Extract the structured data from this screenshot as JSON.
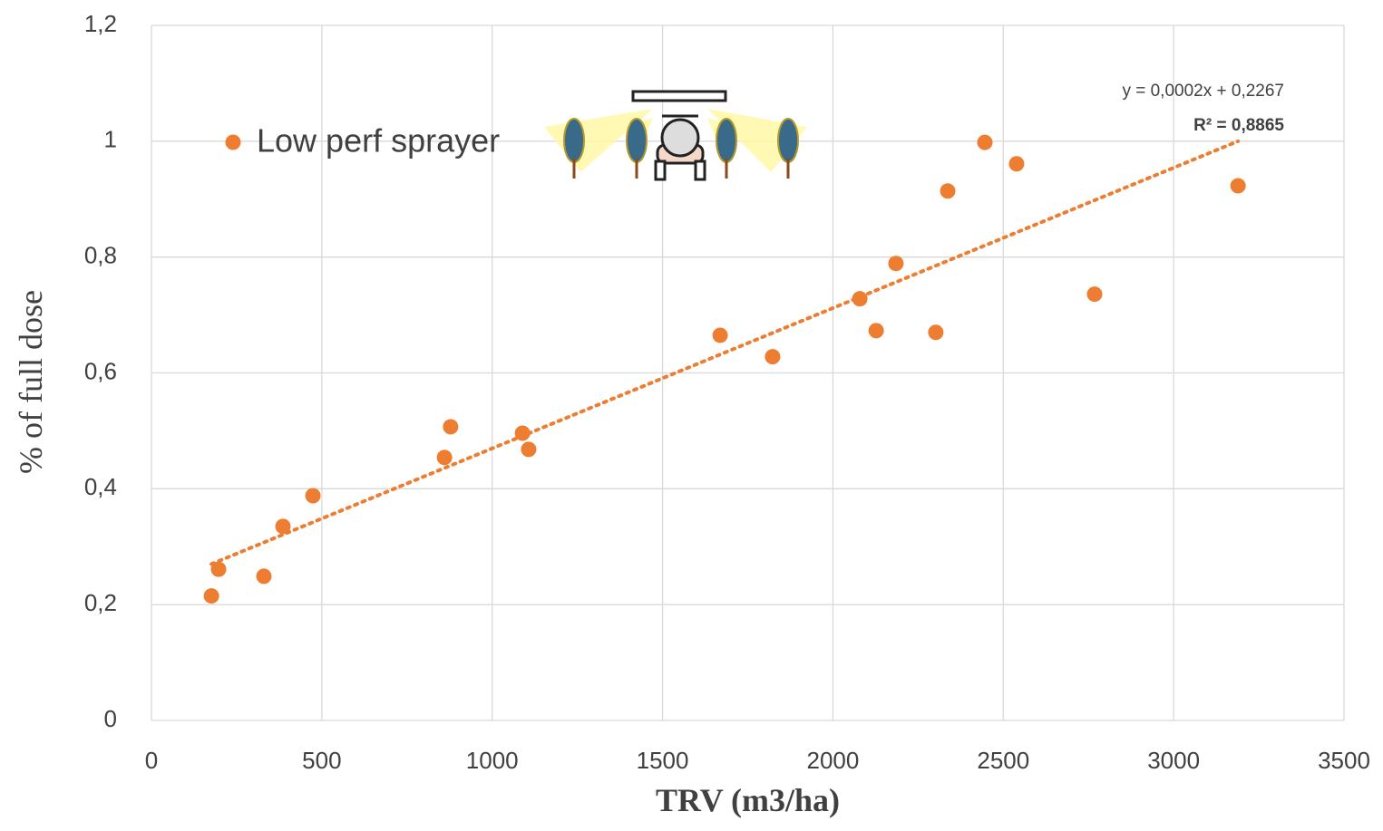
{
  "chart_data": {
    "type": "scatter",
    "x_label": "TRV (m3/ha)",
    "y_label": "% of full dose",
    "series": [
      {
        "name": "Low perf sprayer",
        "color": "#ED7D31",
        "x": [
          176,
          197,
          330,
          386,
          474,
          860,
          878,
          1089,
          1107,
          1669,
          1823,
          2079,
          2127,
          2185,
          2302,
          2337,
          2446,
          2539,
          2768,
          3189
        ],
        "values": [
          0.215,
          0.261,
          0.249,
          0.335,
          0.388,
          0.454,
          0.507,
          0.496,
          0.468,
          0.665,
          0.628,
          0.728,
          0.673,
          0.789,
          0.67,
          0.914,
          0.998,
          0.961,
          0.736,
          0.923
        ]
      }
    ],
    "trendline": {
      "equation": "y = 0,0002x + 0,2267",
      "r2": "R² = 0,8865",
      "x": [
        176,
        3189
      ],
      "values": [
        0.27,
        1.0
      ]
    },
    "xlim": [
      0,
      3500
    ],
    "xticks": [
      0,
      500,
      1000,
      1500,
      2000,
      2500,
      3000,
      3500
    ],
    "ylim": [
      0,
      1.2
    ],
    "yticks": [
      {
        "value": 0,
        "label": "0"
      },
      {
        "value": 0.2,
        "label": "0,2"
      },
      {
        "value": 0.4,
        "label": "0,4"
      },
      {
        "value": 0.6,
        "label": "0,6"
      },
      {
        "value": 0.8,
        "label": "0,8"
      },
      {
        "value": 1,
        "label": "1"
      },
      {
        "value": 1.2,
        "label": "1,2"
      }
    ],
    "grid": true,
    "legend": "upper left"
  }
}
